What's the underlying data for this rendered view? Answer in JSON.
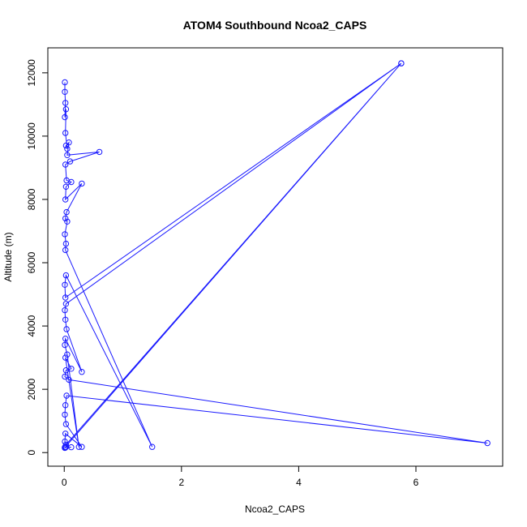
{
  "chart_data": {
    "type": "line",
    "title": "ATOM4 Southbound Ncoa2_CAPS",
    "xlabel": "Ncoa2_CAPS",
    "ylabel": "Altitude (m)",
    "xlim": [
      -0.28,
      7.48
    ],
    "ylim": [
      -430,
      12790
    ],
    "xticks": [
      0,
      2,
      4,
      6
    ],
    "yticks": [
      0,
      2000,
      4000,
      6000,
      8000,
      10000,
      12000
    ],
    "grid": false,
    "markers": "open-circle",
    "color": "#1a1aff",
    "series": [
      {
        "x": [
          0.01,
          0.01,
          0.02,
          0.01,
          0.03,
          0.02,
          0.05,
          0.03,
          0.08,
          0.05,
          0.6,
          0.1,
          0.02,
          0.04,
          0.12,
          0.03,
          0.02,
          0.3,
          0.04,
          0.02,
          0.05,
          0.01,
          0.03,
          0.02,
          1.5,
          0.03,
          0.01,
          0.02,
          5.75,
          0.03,
          0.01,
          0.02,
          0.04,
          0.3,
          0.02,
          0.01,
          0.05,
          0.25,
          0.02,
          0.12,
          0.03,
          0.01,
          0.08,
          7.22,
          0.04,
          0.02,
          0.01,
          0.03,
          0.3,
          0.02,
          0.01,
          0.03,
          5.75,
          0.02,
          0.01,
          0.02,
          0.12,
          0.03,
          0.01,
          0.02,
          0.01
        ],
        "y": [
          11700,
          11400,
          11050,
          10600,
          10850,
          10100,
          9600,
          9700,
          9800,
          9400,
          9500,
          9200,
          9100,
          8600,
          8550,
          8400,
          8000,
          8500,
          7600,
          7400,
          7300,
          6900,
          6600,
          6400,
          180,
          5600,
          5300,
          4900,
          12300,
          4700,
          4500,
          4200,
          3900,
          2550,
          3600,
          3400,
          3100,
          180,
          3000,
          2650,
          2600,
          2400,
          2300,
          300,
          1800,
          1500,
          1200,
          900,
          180,
          600,
          350,
          250,
          12300,
          180,
          150,
          170,
          170,
          180,
          170,
          160,
          150
        ]
      }
    ]
  }
}
